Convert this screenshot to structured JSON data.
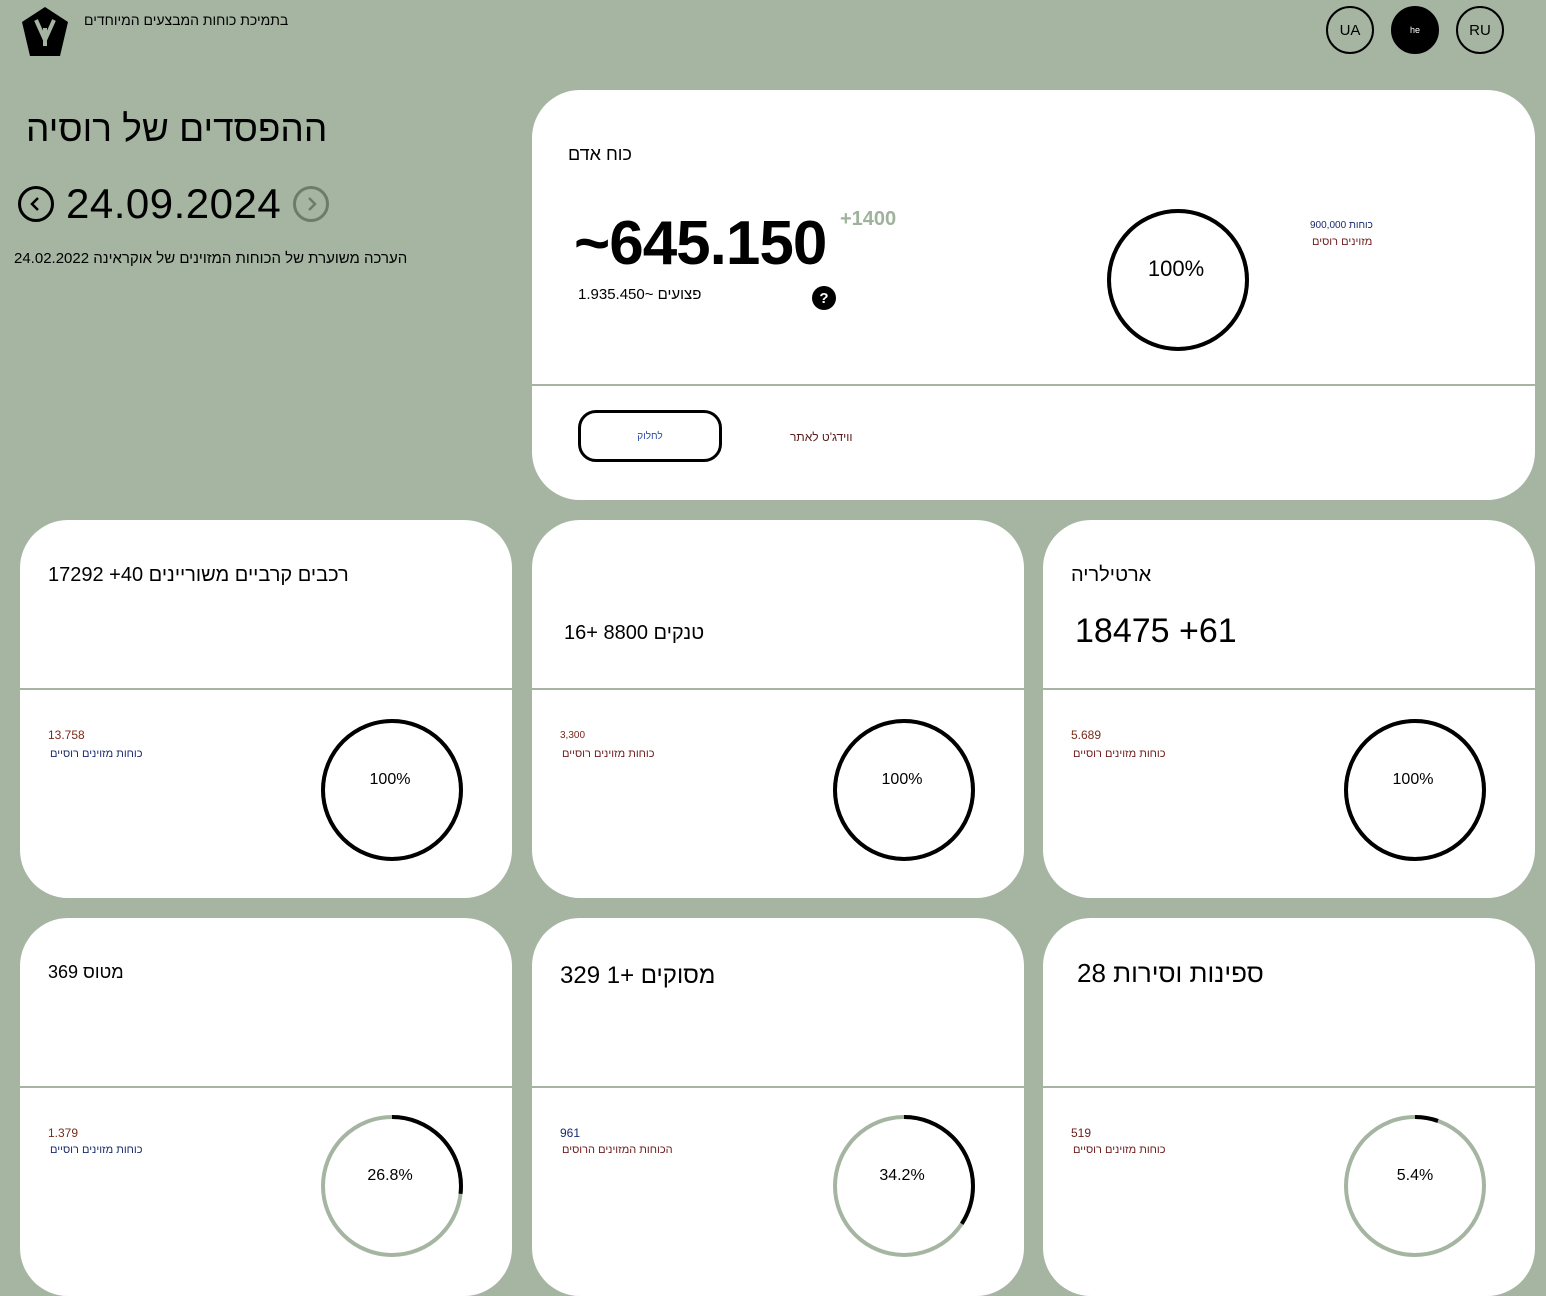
{
  "header": {
    "support_text": "בתמיכת כוחות המבצעים המיוחדים",
    "languages": [
      {
        "code": "UA",
        "active": false
      },
      {
        "code": "he",
        "active": true
      },
      {
        "code": "RU",
        "active": false
      }
    ]
  },
  "hero": {
    "title": "ההפסדים של רוסיה",
    "date": "24.09.2024",
    "estimate": "הערכה משוערת של הכוחות המזוינים של אוקראינה 24.02.2022"
  },
  "manpower": {
    "title": "כוח אדם",
    "total": "~645.150",
    "delta": "+1400",
    "wounded": "פצועים ~1.935.450",
    "help": "?",
    "ring_percent_label": "100%",
    "ring_value": 1.0,
    "force_number": "900,000 כוחות",
    "force_label": "מזוינים רוסים",
    "share_label": "לחלוק",
    "widget_label": "ווידג'ט לאתר"
  },
  "cards": [
    {
      "title": "רכבים קרביים משוריינים 40+ 17292",
      "sub": "",
      "count": "13.758",
      "count_label": "כוחות מזוינים רוסיים",
      "percent_label": "100%",
      "ring_value": 1.0
    },
    {
      "title": "",
      "sub": "טנקים 8800 +16",
      "count": "3,300",
      "count_label": "כוחות מזוינים רוסיים",
      "percent_label": "100%",
      "ring_value": 1.0
    },
    {
      "title": "ארטילריה",
      "sub": "18475 +61",
      "count": "5.689",
      "count_label": "כוחות מזוינים רוסיים",
      "percent_label": "100%",
      "ring_value": 1.0
    },
    {
      "title": "מטוס 369",
      "sub": "",
      "count": "1.379",
      "count_label": "כוחות מזוינים רוסיים",
      "percent_label": "26.8%",
      "ring_value": 0.268
    },
    {
      "title": "מסוקים +1 329",
      "sub": "",
      "count": "961",
      "count_label": "הכוחות המזוינים הרוסים",
      "percent_label": "34.2%",
      "ring_value": 0.342
    },
    {
      "title": "ספינות וסירות 28",
      "sub": "",
      "count": "519",
      "count_label": "כוחות מזוינים רוסיים",
      "percent_label": "5.4%",
      "ring_value": 0.054
    }
  ],
  "colors": {
    "background": "#a5b5a2",
    "ring_track": "#a5b5a2",
    "ring_fill": "#000000",
    "delta": "#9fb39c"
  }
}
